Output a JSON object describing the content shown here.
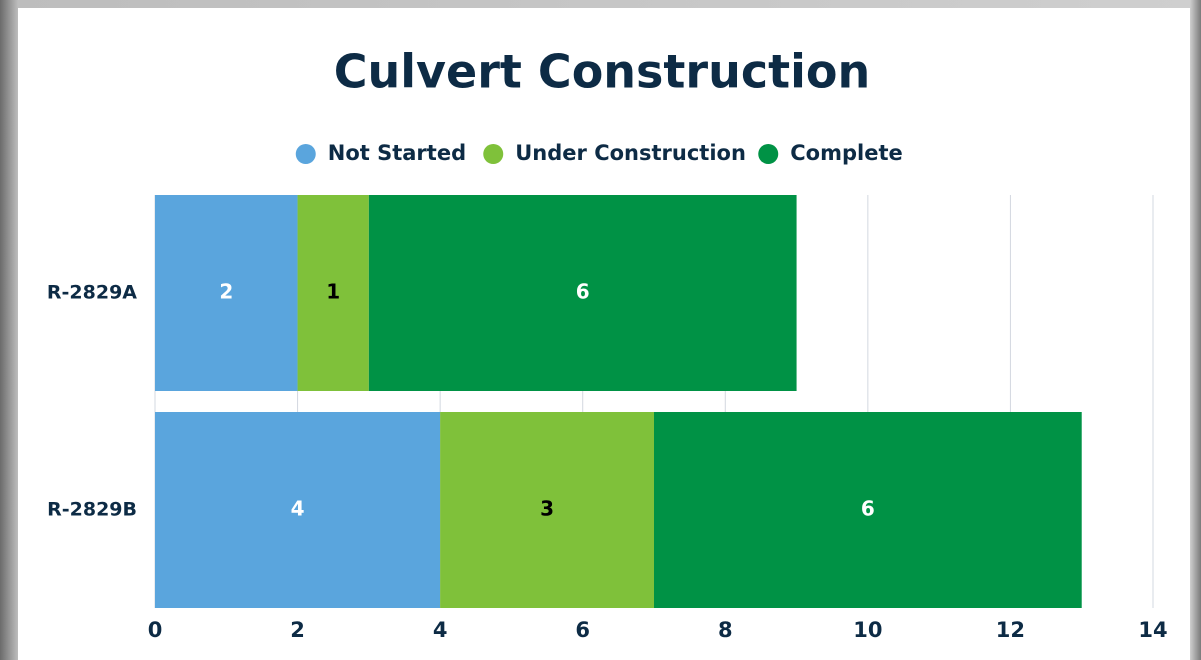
{
  "chart_data": {
    "type": "stacked-barh",
    "title": "Culvert Construction",
    "categories": [
      "R-2829A",
      "R-2829B"
    ],
    "series": [
      {
        "name": "Not Started",
        "color": "#5aa5dd",
        "label_color": "#ffffff",
        "values": [
          2,
          4
        ]
      },
      {
        "name": "Under Construction",
        "color": "#7fc13a",
        "label_color": "#000000",
        "values": [
          1,
          3
        ]
      },
      {
        "name": "Complete",
        "color": "#009245",
        "label_color": "#ffffff",
        "values": [
          6,
          6
        ]
      }
    ],
    "xlim": [
      0,
      14
    ],
    "xticks": [
      0,
      2,
      4,
      6,
      8,
      10,
      12,
      14
    ],
    "grid": true,
    "legend": "top"
  }
}
